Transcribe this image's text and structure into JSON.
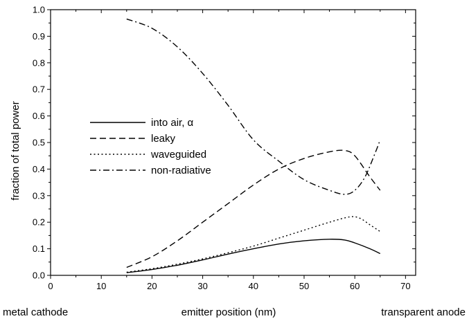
{
  "chart_data": {
    "type": "line",
    "title": "",
    "xlabel": "emitter position (nm)",
    "ylabel": "fraction of total power",
    "x_left_label": "metal cathode",
    "x_right_label": "transparent anode",
    "xlim": [
      0,
      72
    ],
    "ylim": [
      0,
      1.0
    ],
    "x_ticks": [
      0,
      10,
      20,
      30,
      40,
      50,
      60,
      70
    ],
    "x_tick_labels": [
      "0",
      "10",
      "20",
      "30",
      "40",
      "50",
      "60",
      "70"
    ],
    "y_ticks": [
      0.0,
      0.1,
      0.2,
      0.3,
      0.4,
      0.5,
      0.6,
      0.7,
      0.8,
      0.9,
      1.0
    ],
    "y_tick_labels": [
      "0.0",
      "0.1",
      "0.2",
      "0.3",
      "0.4",
      "0.5",
      "0.6",
      "0.7",
      "0.8",
      "0.9",
      "1.0"
    ],
    "grid": false,
    "legend_position": "center-left",
    "series": [
      {
        "name": "into air, α",
        "dash": "solid",
        "color": "#000000",
        "x": [
          15,
          20,
          25,
          30,
          35,
          40,
          45,
          50,
          55,
          58,
          60,
          63,
          65
        ],
        "y": [
          0.01,
          0.022,
          0.038,
          0.058,
          0.08,
          0.1,
          0.118,
          0.13,
          0.136,
          0.133,
          0.122,
          0.1,
          0.082
        ]
      },
      {
        "name": "leaky",
        "dash": "dashed",
        "color": "#000000",
        "x": [
          15,
          20,
          25,
          30,
          35,
          40,
          45,
          50,
          55,
          58,
          60,
          63,
          65
        ],
        "y": [
          0.03,
          0.07,
          0.13,
          0.2,
          0.27,
          0.34,
          0.4,
          0.44,
          0.465,
          0.47,
          0.45,
          0.37,
          0.32
        ]
      },
      {
        "name": "waveguided",
        "dash": "dotted",
        "color": "#000000",
        "x": [
          15,
          20,
          25,
          30,
          35,
          40,
          45,
          50,
          55,
          59,
          61,
          63,
          65
        ],
        "y": [
          0.012,
          0.025,
          0.042,
          0.062,
          0.085,
          0.11,
          0.14,
          0.17,
          0.2,
          0.22,
          0.215,
          0.19,
          0.165
        ]
      },
      {
        "name": "non-radiative",
        "dash": "dashdot",
        "color": "#000000",
        "x": [
          15,
          20,
          25,
          30,
          35,
          40,
          45,
          50,
          55,
          58,
          60,
          62,
          64,
          65
        ],
        "y": [
          0.965,
          0.93,
          0.86,
          0.76,
          0.64,
          0.51,
          0.43,
          0.36,
          0.32,
          0.305,
          0.32,
          0.37,
          0.46,
          0.51
        ]
      }
    ]
  }
}
